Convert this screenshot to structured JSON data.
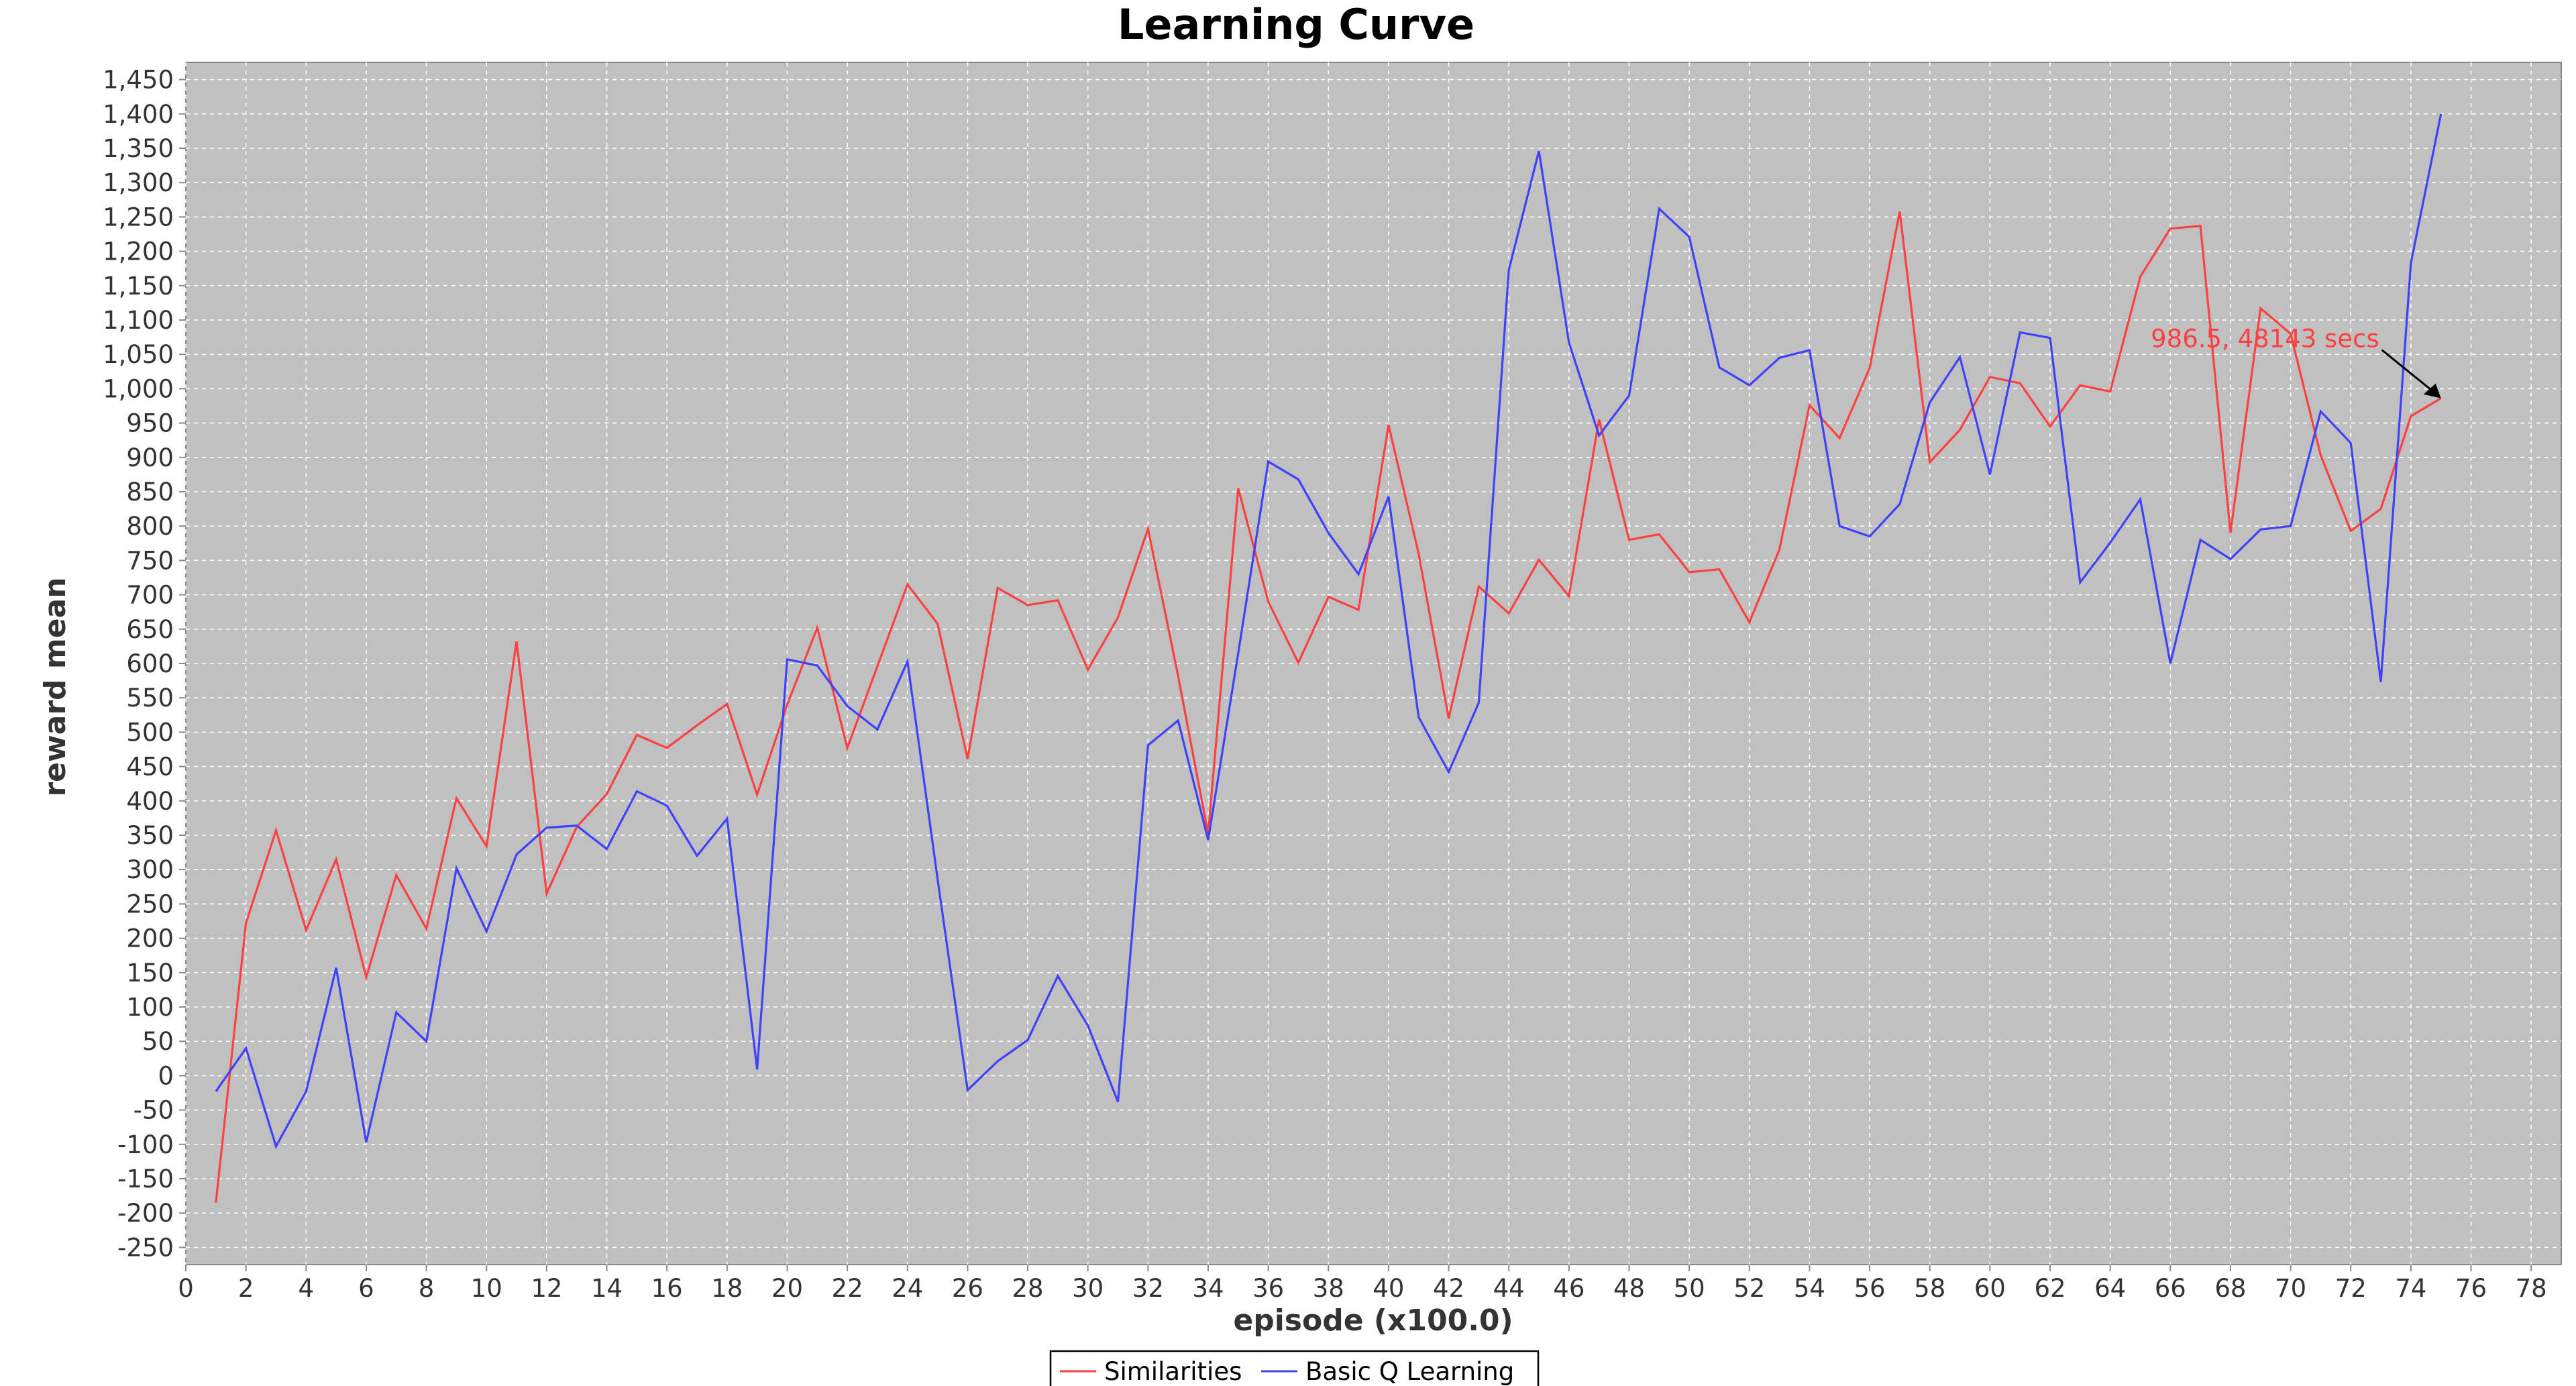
{
  "chart_data": {
    "type": "line",
    "title": "Learning Curve",
    "xlabel": "episode (x100.0)",
    "ylabel": "reward mean",
    "xlim": [
      0,
      79
    ],
    "ylim": [
      -275,
      1475
    ],
    "x_ticks": [
      0,
      2,
      4,
      6,
      8,
      10,
      12,
      14,
      16,
      18,
      20,
      22,
      24,
      26,
      28,
      30,
      32,
      34,
      36,
      38,
      40,
      42,
      44,
      46,
      48,
      50,
      52,
      54,
      56,
      58,
      60,
      62,
      64,
      66,
      68,
      70,
      72,
      74,
      76,
      78
    ],
    "y_ticks": [
      -250,
      -200,
      -150,
      -100,
      -50,
      0,
      50,
      100,
      150,
      200,
      250,
      300,
      350,
      400,
      450,
      500,
      550,
      600,
      650,
      700,
      750,
      800,
      850,
      900,
      950,
      1000,
      1050,
      1100,
      1150,
      1200,
      1250,
      1300,
      1350,
      1400,
      1450
    ],
    "grid": true,
    "legend_position": "bottom-center",
    "plot_background": "#c0c0c0",
    "x": [
      1,
      2,
      3,
      4,
      5,
      6,
      7,
      8,
      9,
      10,
      11,
      12,
      13,
      14,
      15,
      16,
      17,
      18,
      19,
      20,
      21,
      22,
      23,
      24,
      25,
      26,
      27,
      28,
      29,
      30,
      31,
      32,
      33,
      34,
      35,
      36,
      37,
      38,
      39,
      40,
      41,
      42,
      43,
      44,
      45,
      46,
      47,
      48,
      49,
      50,
      51,
      52,
      53,
      54,
      55,
      56,
      57,
      58,
      59,
      60,
      61,
      62,
      63,
      64,
      65,
      66,
      67,
      68,
      69,
      70,
      71,
      72,
      73,
      74,
      75
    ],
    "series": [
      {
        "name": "Similarities",
        "color": "#ff4040",
        "values": [
          -185,
          222,
          357,
          212,
          315,
          143,
          292,
          214,
          404,
          334,
          632,
          265,
          362,
          410,
          496,
          477,
          510,
          541,
          409,
          540,
          652,
          477,
          596,
          715,
          658,
          461,
          710,
          685,
          692,
          591,
          667,
          796,
          582,
          352,
          855,
          690,
          601,
          697,
          678,
          947,
          760,
          520,
          712,
          673,
          751,
          698,
          955,
          780,
          788,
          733,
          737,
          660,
          766,
          976,
          928,
          1030,
          1258,
          893,
          940,
          1017,
          1008,
          945,
          1005,
          996,
          1163,
          1233,
          1237,
          790,
          1117,
          1080,
          903,
          793,
          825,
          960,
          986
        ]
      },
      {
        "name": "Basic Q Learning",
        "color": "#4040ff",
        "values": [
          -23,
          40,
          -103,
          -23,
          157,
          -97,
          92,
          50,
          302,
          210,
          322,
          361,
          364,
          330,
          414,
          393,
          320,
          374,
          9,
          606,
          597,
          538,
          504,
          603,
          287,
          -21,
          21,
          52,
          145,
          73,
          -38,
          481,
          517,
          343,
          615,
          894,
          868,
          790,
          730,
          843,
          522,
          442,
          543,
          1173,
          1346,
          1067,
          932,
          990,
          1262,
          1221,
          1031,
          1005,
          1045,
          1056,
          800,
          785,
          832,
          980,
          1046,
          875,
          1082,
          1074,
          718,
          776,
          839,
          600,
          780,
          752,
          795,
          800,
          967,
          921,
          573,
          1183,
          1400
        ]
      }
    ],
    "annotation": {
      "text": "986.5, 48143 secs",
      "x": 75,
      "y": 986,
      "color": "#ff4040"
    }
  }
}
